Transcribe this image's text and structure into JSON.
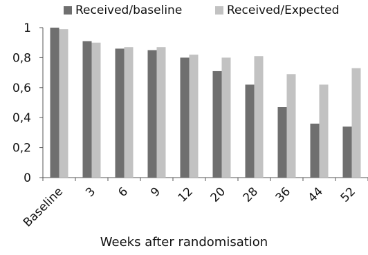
{
  "chart_data": {
    "type": "bar",
    "title": "",
    "xlabel": "Weeks after randomisation",
    "ylabel": "",
    "categories": [
      "Baseline",
      "3",
      "6",
      "9",
      "12",
      "20",
      "28",
      "36",
      "44",
      "52"
    ],
    "series": [
      {
        "name": "Received/baseline",
        "color": "#6f6f6f",
        "values": [
          1.0,
          0.91,
          0.86,
          0.85,
          0.8,
          0.71,
          0.62,
          0.47,
          0.36,
          0.34
        ]
      },
      {
        "name": "Received/Expected",
        "color": "#c2c2c2",
        "values": [
          0.99,
          0.9,
          0.87,
          0.87,
          0.82,
          0.8,
          0.81,
          0.69,
          0.62,
          0.73
        ]
      }
    ],
    "ylim": [
      0,
      1
    ],
    "yticks": [
      "0",
      "0,2",
      "0,4",
      "0,6",
      "0,8",
      "1"
    ],
    "grid": false,
    "legend_position": "top"
  }
}
